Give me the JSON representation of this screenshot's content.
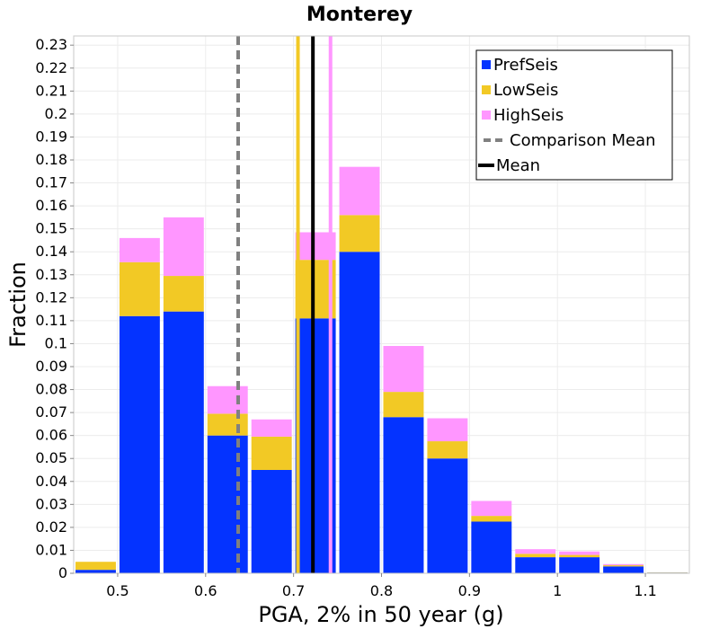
{
  "chart_data": {
    "type": "bar",
    "stacked": true,
    "title": "Monterey",
    "xlabel": "PGA, 2% in 50 year (g)",
    "ylabel": "Fraction",
    "xlim": [
      0.45,
      1.15
    ],
    "ylim": [
      0,
      0.234
    ],
    "bin_width": 0.05,
    "x_ticks": [
      "0.5",
      "0.6",
      "0.7",
      "0.8",
      "0.9",
      "1",
      "1.1"
    ],
    "y_ticks": [
      "0",
      "0.01",
      "0.02",
      "0.03",
      "0.04",
      "0.05",
      "0.06",
      "0.07",
      "0.08",
      "0.09",
      "0.1",
      "0.11",
      "0.12",
      "0.13",
      "0.14",
      "0.15",
      "0.16",
      "0.17",
      "0.18",
      "0.19",
      "0.2",
      "0.21",
      "0.22",
      "0.23"
    ],
    "bin_centers": [
      0.475,
      0.525,
      0.575,
      0.625,
      0.675,
      0.725,
      0.775,
      0.825,
      0.875,
      0.925,
      0.975,
      1.025,
      1.075,
      1.125
    ],
    "series": [
      {
        "name": "PrefSeis",
        "color": "#0433ff",
        "values": [
          0.0015,
          0.112,
          0.114,
          0.06,
          0.045,
          0.111,
          0.14,
          0.068,
          0.05,
          0.0225,
          0.007,
          0.007,
          0.003,
          0.0003
        ]
      },
      {
        "name": "LowSeis",
        "color": "#f2c925",
        "values": [
          0.0035,
          0.0235,
          0.0155,
          0.0095,
          0.0145,
          0.0255,
          0.016,
          0.011,
          0.0075,
          0.0025,
          0.0015,
          0.001,
          0.0005,
          0.0001
        ]
      },
      {
        "name": "HighSeis",
        "color": "#ff96ff",
        "values": [
          0.0,
          0.0105,
          0.0255,
          0.012,
          0.0075,
          0.012,
          0.021,
          0.02,
          0.01,
          0.0065,
          0.002,
          0.0015,
          0.0005,
          0.0
        ]
      }
    ],
    "comparison_mean": {
      "name": "Comparison Mean",
      "x": 0.637,
      "color": "#808080"
    },
    "mean": {
      "name": "Mean",
      "x": 0.722,
      "color": "#000000"
    },
    "low_marker": {
      "x": 0.705,
      "color": "#f2c925"
    },
    "high_marker": {
      "x": 0.742,
      "color": "#ff96ff"
    },
    "legend": {
      "position": "top-right",
      "entries": [
        "PrefSeis",
        "LowSeis",
        "HighSeis",
        "Comparison Mean",
        "Mean"
      ]
    }
  }
}
